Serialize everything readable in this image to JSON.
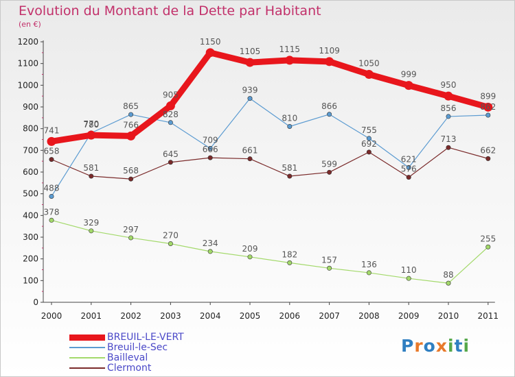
{
  "title": "Evolution du Montant de la Dette par Habitant",
  "subtitle": "(en €)",
  "logo": {
    "text": "Proxiti",
    "colors": [
      "#2f7fc1",
      "#e8792a",
      "#2f7fc1",
      "#e8792a",
      "#55a84a",
      "#2f7fc1",
      "#55a84a"
    ]
  },
  "chart_data": {
    "type": "line",
    "x": [
      "2000",
      "2001",
      "2002",
      "2003",
      "2004",
      "2005",
      "2006",
      "2007",
      "2008",
      "2009",
      "2010",
      "2011"
    ],
    "ylim": [
      0,
      1200
    ],
    "yticks": [
      0,
      100,
      200,
      300,
      400,
      500,
      600,
      700,
      800,
      900,
      1000,
      1100,
      1200
    ],
    "grid": false,
    "legend_position": "bottom-left",
    "series": [
      {
        "name": "BREUIL-LE-VERT",
        "color": "#e8161c",
        "legend_text_color": "#4a48c8",
        "values": [
          741,
          770,
          766,
          905,
          1150,
          1105,
          1115,
          1109,
          1050,
          999,
          950,
          899
        ]
      },
      {
        "name": "Breuil-le-Sec",
        "color": "#5b9bd1",
        "legend_text_color": "#4a48c8",
        "values": [
          488,
          780,
          865,
          828,
          709,
          939,
          810,
          866,
          755,
          621,
          856,
          862
        ]
      },
      {
        "name": "Bailleval",
        "color": "#a3d96a",
        "legend_text_color": "#4a48c8",
        "values": [
          378,
          329,
          297,
          270,
          234,
          209,
          182,
          157,
          136,
          110,
          88,
          255
        ]
      },
      {
        "name": "Clermont",
        "color": "#7a2a2a",
        "legend_text_color": "#4a48c8",
        "values": [
          658,
          581,
          568,
          645,
          666,
          661,
          581,
          599,
          692,
          576,
          713,
          662
        ]
      }
    ]
  }
}
